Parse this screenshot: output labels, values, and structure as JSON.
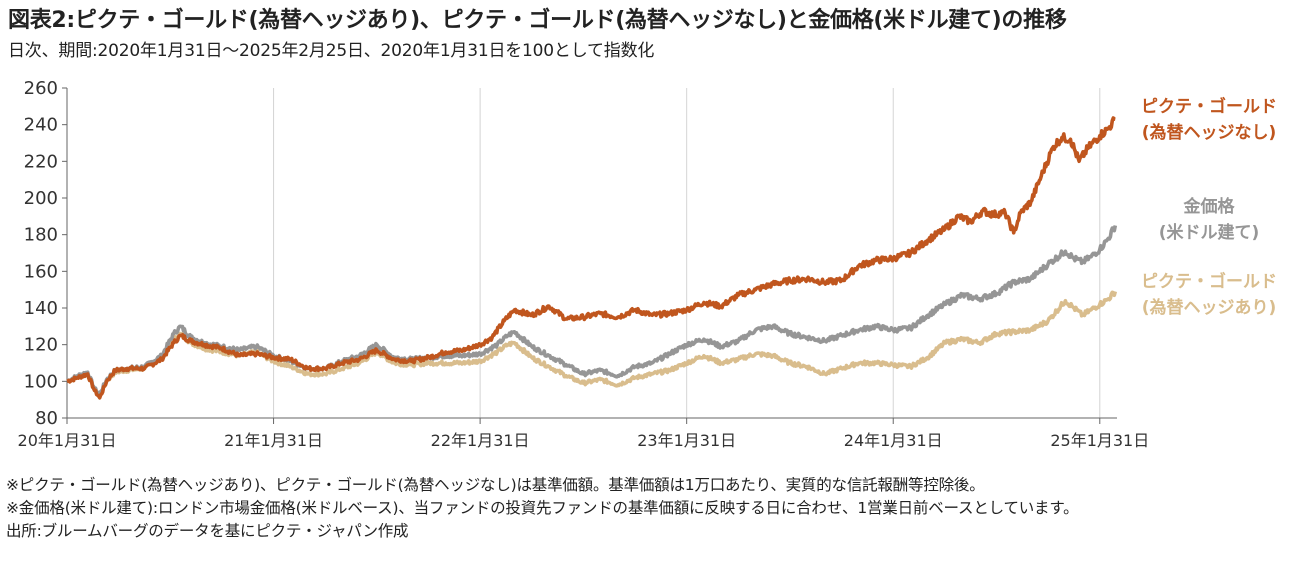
{
  "header": {
    "title": "図表2:ピクテ・ゴールド(為替ヘッジあり)、ピクテ・ゴールド(為替ヘッジなし)と金価格(米ドル建て)の推移",
    "subtitle": "日次、期間:2020年1月31日～2025年2月25日、2020年1月31日を100として指数化"
  },
  "notes": [
    "※ピクテ・ゴールド(為替ヘッジあり)、ピクテ・ゴールド(為替ヘッジなし)は基準価額。基準価額は1万口あたり、実質的な信託報酬等控除後。",
    "※金価格(米ドル建て):ロンドン市場金価格(米ドルベース)、当ファンドの投資先ファンドの基準価額に反映する日に合わせ、1営業日前ベースとしています。",
    "出所:ブルームバーグのデータを基にピクテ・ジャパン作成"
  ],
  "chart_data": {
    "type": "line",
    "ylim": [
      80,
      260
    ],
    "yticks": [
      80,
      100,
      120,
      140,
      160,
      180,
      200,
      220,
      240,
      260
    ],
    "xlim": [
      0,
      61
    ],
    "xticks": [
      {
        "t": 0,
        "label": "20年1月31日"
      },
      {
        "t": 12,
        "label": "21年1月31日"
      },
      {
        "t": 24,
        "label": "22年1月31日"
      },
      {
        "t": 36,
        "label": "23年1月31日"
      },
      {
        "t": 48,
        "label": "24年1月31日"
      },
      {
        "t": 60,
        "label": "25年1月31日"
      }
    ],
    "x_unit": "months since 2020-01-31",
    "grid": "vertical at x ticks",
    "series": [
      {
        "name": "ピクテ・ゴールド(為替ヘッジなし)",
        "label_lines": [
          "ピクテ・ゴールド",
          "(為替ヘッジなし)"
        ],
        "color": "#c0561e",
        "points": [
          [
            0,
            100
          ],
          [
            0.6,
            102
          ],
          [
            1.2,
            104
          ],
          [
            1.6,
            95
          ],
          [
            1.9,
            91
          ],
          [
            2.3,
            100
          ],
          [
            2.8,
            106
          ],
          [
            3.5,
            107
          ],
          [
            4.5,
            107
          ],
          [
            5.5,
            112
          ],
          [
            6.2,
            121
          ],
          [
            6.6,
            125
          ],
          [
            7.2,
            122
          ],
          [
            8,
            120
          ],
          [
            9,
            118
          ],
          [
            10,
            114
          ],
          [
            11,
            115
          ],
          [
            12,
            113
          ],
          [
            13,
            112
          ],
          [
            14,
            107
          ],
          [
            15,
            107
          ],
          [
            16,
            110
          ],
          [
            17,
            112
          ],
          [
            18,
            117
          ],
          [
            19,
            112
          ],
          [
            20,
            111
          ],
          [
            21,
            113
          ],
          [
            22,
            116
          ],
          [
            23,
            117
          ],
          [
            24,
            120
          ],
          [
            24.7,
            124
          ],
          [
            25.4,
            133
          ],
          [
            26,
            139
          ],
          [
            27,
            136
          ],
          [
            28,
            141
          ],
          [
            29,
            134
          ],
          [
            30,
            135
          ],
          [
            31,
            137
          ],
          [
            32,
            135
          ],
          [
            33,
            139
          ],
          [
            34,
            136
          ],
          [
            35,
            137
          ],
          [
            36,
            139
          ],
          [
            37,
            143
          ],
          [
            38,
            141
          ],
          [
            39,
            147
          ],
          [
            40,
            150
          ],
          [
            41,
            153
          ],
          [
            42,
            155
          ],
          [
            43,
            156
          ],
          [
            44,
            154
          ],
          [
            45,
            155
          ],
          [
            46,
            163
          ],
          [
            47,
            166
          ],
          [
            48,
            167
          ],
          [
            49,
            170
          ],
          [
            50,
            177
          ],
          [
            51,
            183
          ],
          [
            51.8,
            190
          ],
          [
            52.5,
            187
          ],
          [
            53.2,
            193
          ],
          [
            53.8,
            191
          ],
          [
            54.5,
            192
          ],
          [
            55,
            181
          ],
          [
            55.4,
            192
          ],
          [
            56,
            198
          ],
          [
            56.6,
            212
          ],
          [
            57.3,
            228
          ],
          [
            57.8,
            233
          ],
          [
            58.3,
            232
          ],
          [
            58.8,
            220
          ],
          [
            59.3,
            227
          ],
          [
            60,
            234
          ],
          [
            60.5,
            238
          ],
          [
            60.9,
            243
          ]
        ]
      },
      {
        "name": "金価格(米ドル建て)",
        "label_lines": [
          "金価格",
          "(米ドル建て)"
        ],
        "color": "#969696",
        "points": [
          [
            0,
            100
          ],
          [
            0.6,
            103
          ],
          [
            1.2,
            105
          ],
          [
            1.6,
            96
          ],
          [
            1.9,
            93
          ],
          [
            2.3,
            101
          ],
          [
            2.8,
            106
          ],
          [
            3.5,
            107
          ],
          [
            4.5,
            108
          ],
          [
            5.5,
            114
          ],
          [
            6.2,
            126
          ],
          [
            6.6,
            130
          ],
          [
            7.2,
            124
          ],
          [
            8,
            121
          ],
          [
            9,
            119
          ],
          [
            10,
            117
          ],
          [
            11,
            119
          ],
          [
            12,
            114
          ],
          [
            13,
            111
          ],
          [
            14,
            107
          ],
          [
            15,
            107
          ],
          [
            16,
            111
          ],
          [
            17,
            114
          ],
          [
            18,
            120
          ],
          [
            19,
            113
          ],
          [
            20,
            112
          ],
          [
            21,
            113
          ],
          [
            22,
            114
          ],
          [
            23,
            114
          ],
          [
            24,
            115
          ],
          [
            25,
            120
          ],
          [
            25.6,
            125
          ],
          [
            26,
            127
          ],
          [
            27,
            119
          ],
          [
            28,
            114
          ],
          [
            29,
            109
          ],
          [
            30,
            104
          ],
          [
            31,
            106
          ],
          [
            32,
            103
          ],
          [
            33,
            108
          ],
          [
            34,
            110
          ],
          [
            35,
            115
          ],
          [
            36,
            120
          ],
          [
            37,
            123
          ],
          [
            38,
            119
          ],
          [
            39,
            122
          ],
          [
            40,
            128
          ],
          [
            41,
            130
          ],
          [
            42,
            126
          ],
          [
            43,
            124
          ],
          [
            44,
            122
          ],
          [
            45,
            125
          ],
          [
            46,
            128
          ],
          [
            47,
            130
          ],
          [
            48,
            128
          ],
          [
            49,
            129
          ],
          [
            50,
            136
          ],
          [
            51,
            142
          ],
          [
            52,
            147
          ],
          [
            53,
            145
          ],
          [
            54,
            148
          ],
          [
            55,
            154
          ],
          [
            56,
            156
          ],
          [
            57,
            164
          ],
          [
            58,
            171
          ],
          [
            58.5,
            167
          ],
          [
            59,
            165
          ],
          [
            59.5,
            168
          ],
          [
            60,
            172
          ],
          [
            60.5,
            178
          ],
          [
            60.9,
            185
          ]
        ]
      },
      {
        "name": "ピクテ・ゴールド(為替ヘッジあり)",
        "label_lines": [
          "ピクテ・ゴールド",
          "(為替ヘッジあり)"
        ],
        "color": "#d9bd8d",
        "points": [
          [
            0,
            100
          ],
          [
            0.6,
            102
          ],
          [
            1.2,
            104
          ],
          [
            1.6,
            95
          ],
          [
            1.9,
            92
          ],
          [
            2.3,
            100
          ],
          [
            2.8,
            105
          ],
          [
            3.5,
            106
          ],
          [
            4.5,
            107
          ],
          [
            5.5,
            113
          ],
          [
            6.2,
            123
          ],
          [
            6.6,
            126
          ],
          [
            7.2,
            121
          ],
          [
            8,
            118
          ],
          [
            9,
            116
          ],
          [
            10,
            114
          ],
          [
            11,
            116
          ],
          [
            12,
            111
          ],
          [
            13,
            108
          ],
          [
            14,
            104
          ],
          [
            15,
            104
          ],
          [
            16,
            107
          ],
          [
            17,
            110
          ],
          [
            18,
            116
          ],
          [
            19,
            110
          ],
          [
            20,
            109
          ],
          [
            21,
            110
          ],
          [
            22,
            110
          ],
          [
            23,
            110
          ],
          [
            24,
            111
          ],
          [
            25,
            116
          ],
          [
            25.6,
            120
          ],
          [
            26,
            121
          ],
          [
            27,
            113
          ],
          [
            28,
            108
          ],
          [
            29,
            103
          ],
          [
            30,
            99
          ],
          [
            31,
            101
          ],
          [
            32,
            98
          ],
          [
            33,
            102
          ],
          [
            34,
            104
          ],
          [
            35,
            106
          ],
          [
            36,
            110
          ],
          [
            37,
            114
          ],
          [
            38,
            110
          ],
          [
            39,
            112
          ],
          [
            40,
            115
          ],
          [
            41,
            114
          ],
          [
            42,
            110
          ],
          [
            43,
            108
          ],
          [
            44,
            104
          ],
          [
            45,
            107
          ],
          [
            46,
            110
          ],
          [
            47,
            110
          ],
          [
            48,
            109
          ],
          [
            49,
            108
          ],
          [
            50,
            113
          ],
          [
            51,
            121
          ],
          [
            52,
            123
          ],
          [
            53,
            121
          ],
          [
            54,
            126
          ],
          [
            55,
            127
          ],
          [
            56,
            128
          ],
          [
            57,
            133
          ],
          [
            58,
            144
          ],
          [
            58.5,
            140
          ],
          [
            59,
            136
          ],
          [
            59.5,
            139
          ],
          [
            60,
            142
          ],
          [
            60.5,
            145
          ],
          [
            60.9,
            149
          ]
        ]
      }
    ]
  }
}
